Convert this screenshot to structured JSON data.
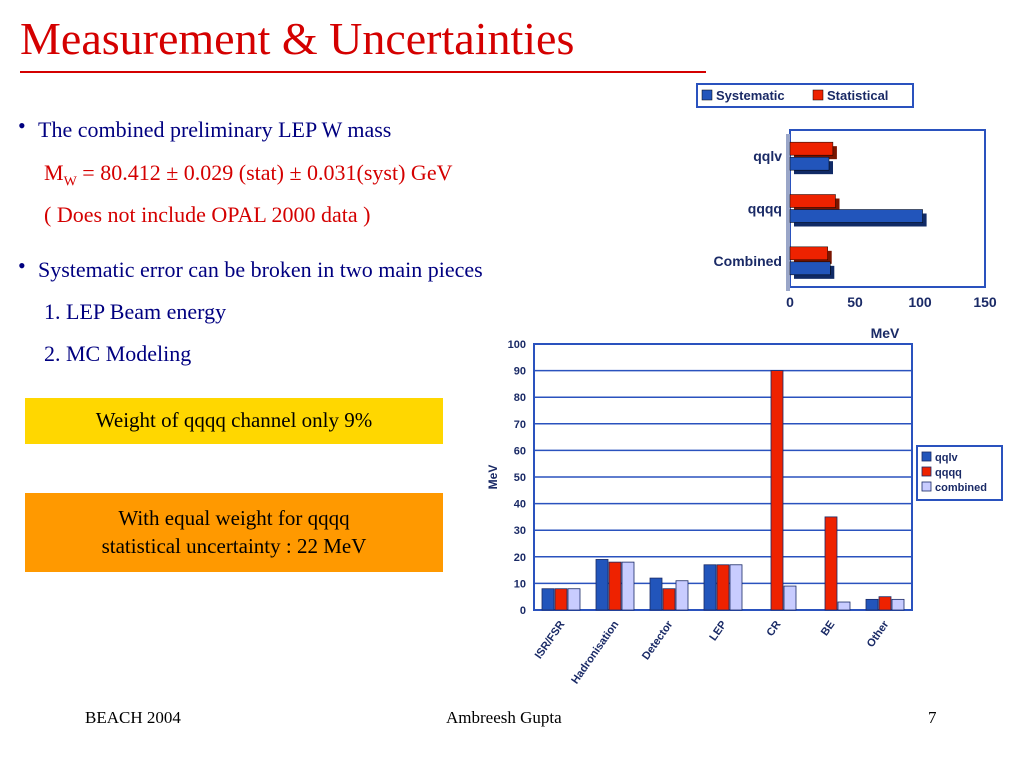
{
  "title": "Measurement & Uncertainties",
  "bullets": {
    "b1": "The combined preliminary LEP W mass",
    "mw_symbol": "M",
    "mw_sub": "W",
    "mw_value": " = 80.412 ± 0.029 (stat) ± 0.031(syst) GeV",
    "note": "( Does not include OPAL 2000 data )",
    "b2": "Systematic error can be broken in two main pieces",
    "item1": "1. LEP Beam energy",
    "item2": "2. MC Modeling"
  },
  "callouts": {
    "yellow": "Weight of qqqq channel only 9%",
    "orange_line1": "With equal weight for qqqq",
    "orange_line2": "statistical uncertainty : 22 MeV"
  },
  "footer": {
    "left": "BEACH 2004",
    "center": "Ambreesh Gupta",
    "right": "7"
  },
  "colors": {
    "title": "#d40000",
    "text": "#000080",
    "series_blue": "#2255bb",
    "series_red": "#ee2200",
    "series_light": "#c8ccff",
    "frame": "#2a52be",
    "callout_yellow": "#ffd700",
    "callout_orange": "#ff9900"
  },
  "chart_data": [
    {
      "type": "bar",
      "orientation": "horizontal",
      "stacked": true,
      "categories": [
        "qqlv",
        "qqqq",
        "Combined"
      ],
      "series": [
        {
          "name": "Systematic",
          "values": [
            30,
            102,
            31
          ]
        },
        {
          "name": "Statistical",
          "values": [
            33,
            35,
            29
          ]
        }
      ],
      "xlabel": "MeV",
      "xlim": [
        0,
        150
      ],
      "xticks": [
        0,
        50,
        100,
        150
      ],
      "legend": "top"
    },
    {
      "type": "bar",
      "categories": [
        "ISR/FSR",
        "Hadronisation",
        "Detector",
        "LEP",
        "CR",
        "BE",
        "Other"
      ],
      "series": [
        {
          "name": "qqlv",
          "values": [
            8,
            19,
            12,
            17,
            0,
            0,
            4
          ]
        },
        {
          "name": "qqqq",
          "values": [
            8,
            18,
            8,
            17,
            90,
            35,
            5
          ]
        },
        {
          "name": "combined",
          "values": [
            8,
            18,
            11,
            17,
            9,
            3,
            4
          ]
        }
      ],
      "ylabel": "MeV",
      "ylim": [
        0,
        100
      ],
      "yticks": [
        0,
        10,
        20,
        30,
        40,
        50,
        60,
        70,
        80,
        90,
        100
      ],
      "grid": true,
      "legend": "right"
    }
  ]
}
